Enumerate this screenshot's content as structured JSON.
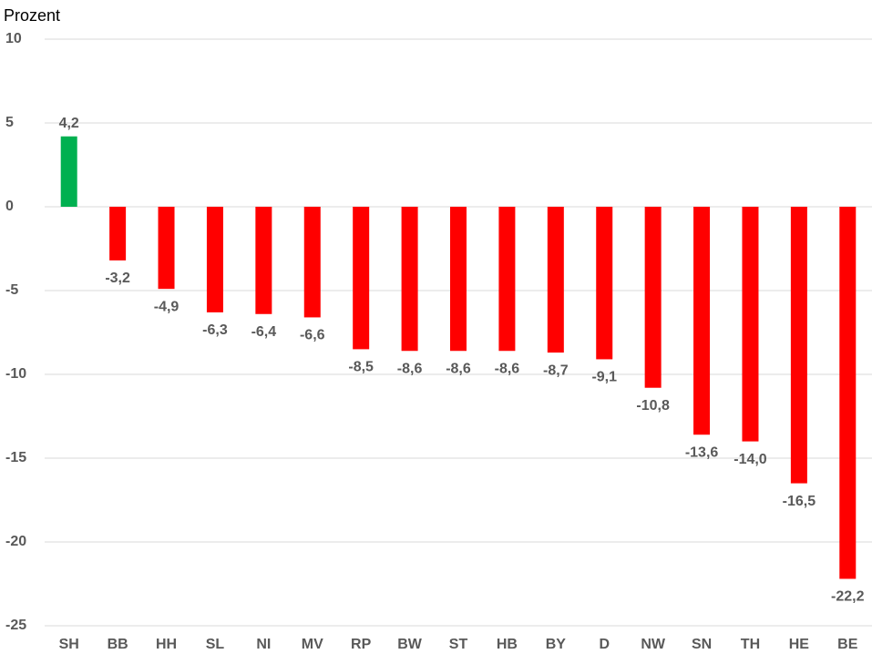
{
  "chart_data": {
    "type": "bar",
    "y_label": "Prozent",
    "categories": [
      "SH",
      "BB",
      "HH",
      "SL",
      "NI",
      "MV",
      "RP",
      "BW",
      "ST",
      "HB",
      "BY",
      "D",
      "NW",
      "SN",
      "TH",
      "HE",
      "BE"
    ],
    "values": [
      4.2,
      -3.2,
      -4.9,
      -6.3,
      -6.4,
      -6.6,
      -8.5,
      -8.6,
      -8.6,
      -8.6,
      -8.7,
      -9.1,
      -10.8,
      -13.6,
      -14.0,
      -16.5,
      -22.2
    ],
    "value_labels": [
      "4,2",
      "-3,2",
      "-4,9",
      "-6,3",
      "-6,4",
      "-6,6",
      "-8,5",
      "-8,6",
      "-8,6",
      "-8,6",
      "-8,7",
      "-9,1",
      "-10,8",
      "-13,6",
      "-14,0",
      "-16,5",
      "-22,2"
    ],
    "colors": [
      "#00b050",
      "#ff0000",
      "#ff0000",
      "#ff0000",
      "#ff0000",
      "#ff0000",
      "#ff0000",
      "#ff0000",
      "#ff0000",
      "#ff0000",
      "#ff0000",
      "#ff0000",
      "#ff0000",
      "#ff0000",
      "#ff0000",
      "#ff0000",
      "#ff0000"
    ],
    "ylim": [
      -25,
      10
    ],
    "yticks": [
      -25,
      -20,
      -15,
      -10,
      -5,
      0,
      5,
      10
    ],
    "grid": true
  }
}
